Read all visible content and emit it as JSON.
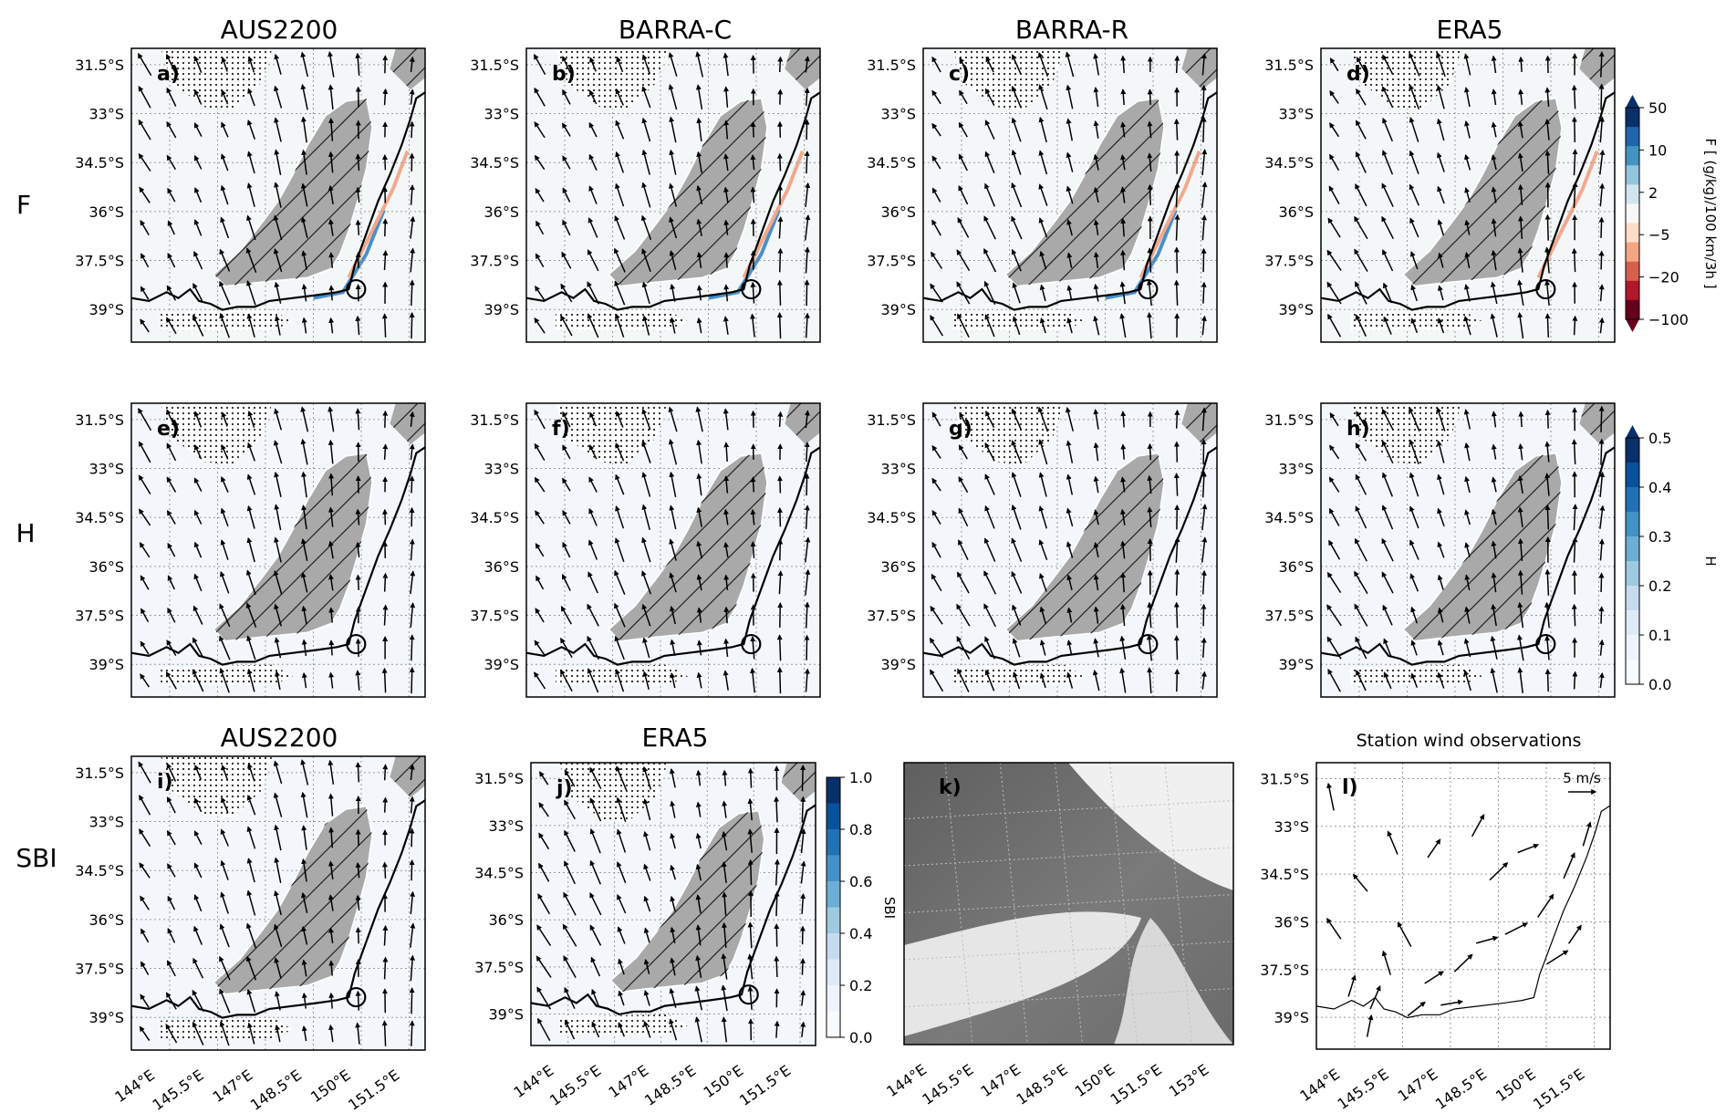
{
  "figure": {
    "row_labels": [
      "F",
      "H",
      "SBI"
    ],
    "row1_titles": [
      "AUS2200",
      "BARRA-C",
      "BARRA-R",
      "ERA5"
    ],
    "row3_titles": [
      "AUS2200",
      "ERA5"
    ],
    "station_title": "Station wind observations",
    "wind_key": "5 m/s",
    "colors": {
      "terrain": "#a9a9a9",
      "coast": "#000000",
      "background_f": "#f4f7f8",
      "background_h": "#f3f7fc",
      "sat_dark": "#6a6a6a",
      "sat_bright": "#e8e8e8"
    }
  },
  "chart_data": [
    {
      "id": "a",
      "type": "heatmap",
      "label": "a)",
      "row": "F",
      "model": "AUS2200",
      "show_ylabels": true,
      "variable": "F",
      "vectors": "model-wind"
    },
    {
      "id": "b",
      "type": "heatmap",
      "label": "b)",
      "row": "F",
      "model": "BARRA-C",
      "show_ylabels": true,
      "variable": "F",
      "vectors": "model-wind"
    },
    {
      "id": "c",
      "type": "heatmap",
      "label": "c)",
      "row": "F",
      "model": "BARRA-R",
      "show_ylabels": true,
      "variable": "F",
      "vectors": "model-wind"
    },
    {
      "id": "d",
      "type": "heatmap",
      "label": "d)",
      "row": "F",
      "model": "ERA5",
      "show_ylabels": true,
      "variable": "F",
      "vectors": "model-wind"
    },
    {
      "id": "e",
      "type": "heatmap",
      "label": "e)",
      "row": "H",
      "model": "AUS2200",
      "show_ylabels": true,
      "variable": "H",
      "vectors": "model-wind"
    },
    {
      "id": "f",
      "type": "heatmap",
      "label": "f)",
      "row": "H",
      "model": "BARRA-C",
      "show_ylabels": true,
      "variable": "H",
      "vectors": "model-wind"
    },
    {
      "id": "g",
      "type": "heatmap",
      "label": "g)",
      "row": "H",
      "model": "BARRA-R",
      "show_ylabels": true,
      "variable": "H",
      "vectors": "model-wind"
    },
    {
      "id": "h",
      "type": "heatmap",
      "label": "h)",
      "row": "H",
      "model": "ERA5",
      "show_ylabels": true,
      "variable": "H",
      "vectors": "model-wind"
    },
    {
      "id": "i",
      "type": "heatmap",
      "label": "i)",
      "row": "SBI",
      "model": "AUS2200",
      "show_ylabels": true,
      "show_xlabels": true,
      "variable": "SBI",
      "vectors": "model-wind"
    },
    {
      "id": "j",
      "type": "heatmap",
      "label": "j)",
      "row": "SBI",
      "model": "ERA5",
      "show_ylabels": true,
      "show_xlabels": true,
      "variable": "SBI",
      "vectors": "model-wind"
    },
    {
      "id": "k",
      "type": "image",
      "label": "k)",
      "content": "satellite imagery",
      "xticks": [
        "144°E",
        "145.5°E",
        "147°E",
        "148.5°E",
        "150°E",
        "151.5°E",
        "153°E"
      ]
    },
    {
      "id": "l",
      "type": "scatter",
      "label": "l)",
      "title": "Station wind observations",
      "show_ylabels": true,
      "show_xlabels": true,
      "vectors": "station-wind",
      "key": "5 m/s"
    }
  ],
  "axes": {
    "yticks": [
      "31.5°S",
      "33°S",
      "34.5°S",
      "36°S",
      "37.5°S",
      "39°S"
    ],
    "ytick_values": [
      -31.5,
      -33,
      -34.5,
      -36,
      -37.5,
      -39
    ],
    "xticks": [
      "144°E",
      "145.5°E",
      "147°E",
      "148.5°E",
      "150°E",
      "151.5°E"
    ],
    "xtick_values": [
      144,
      145.5,
      147,
      148.5,
      150,
      151.5
    ],
    "xlim": [
      142.8,
      152.0
    ],
    "ylim": [
      -40.0,
      -31.0
    ],
    "grid": true,
    "grid_style": "dotted"
  },
  "colorbars": [
    {
      "variable": "F",
      "label": "F [ (g/kg)/100 km/3h ]",
      "ticks": [
        "50",
        "10",
        "2",
        "−5",
        "−20",
        "−100"
      ],
      "colors": [
        "#08306b",
        "#2166ac",
        "#4393c3",
        "#92c5de",
        "#d1e5f0",
        "#f7f7f7",
        "#fddbc7",
        "#f4a582",
        "#d6604d",
        "#b2182b",
        "#67001f"
      ],
      "extend": "both"
    },
    {
      "variable": "H",
      "label": "H",
      "ticks": [
        "0.5",
        "0.4",
        "0.3",
        "0.2",
        "0.1",
        "0.0"
      ],
      "colors": [
        "#08306b",
        "#08519c",
        "#2171b5",
        "#4292c6",
        "#6baed6",
        "#9ecae1",
        "#c6dbef",
        "#deebf7",
        "#eff3ff",
        "#f7fbff"
      ],
      "extend": "max"
    },
    {
      "variable": "SBI",
      "label": "SBI",
      "ticks": [
        "1.0",
        "0.8",
        "0.6",
        "0.4",
        "0.2",
        "0.0"
      ],
      "colors": [
        "#08306b",
        "#08519c",
        "#2171b5",
        "#4292c6",
        "#6baed6",
        "#9ecae1",
        "#c6dbef",
        "#deebf7",
        "#eff3ff",
        "#f7fbff"
      ],
      "extend": "neither"
    }
  ]
}
